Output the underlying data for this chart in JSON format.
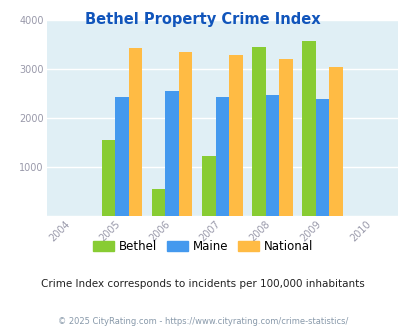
{
  "title": "Bethel Property Crime Index",
  "years": [
    2005,
    2006,
    2007,
    2008,
    2009
  ],
  "bethel": [
    1550,
    550,
    1220,
    3450,
    3560
  ],
  "maine": [
    2430,
    2540,
    2430,
    2460,
    2390
  ],
  "national": [
    3420,
    3350,
    3280,
    3210,
    3030
  ],
  "bethel_color": "#88cc33",
  "maine_color": "#4499ee",
  "national_color": "#ffbb44",
  "bg_color": "#e0eff5",
  "xlim": [
    2003.5,
    2010.5
  ],
  "ylim": [
    0,
    4000
  ],
  "yticks": [
    0,
    1000,
    2000,
    3000,
    4000
  ],
  "xticks": [
    2004,
    2005,
    2006,
    2007,
    2008,
    2009,
    2010
  ],
  "subtitle": "Crime Index corresponds to incidents per 100,000 inhabitants",
  "footer": "© 2025 CityRating.com - https://www.cityrating.com/crime-statistics/",
  "bar_width": 0.27,
  "legend_labels": [
    "Bethel",
    "Maine",
    "National"
  ],
  "title_color": "#1155bb",
  "subtitle_color": "#222222",
  "footer_color": "#8899aa",
  "tick_color": "#9999aa"
}
